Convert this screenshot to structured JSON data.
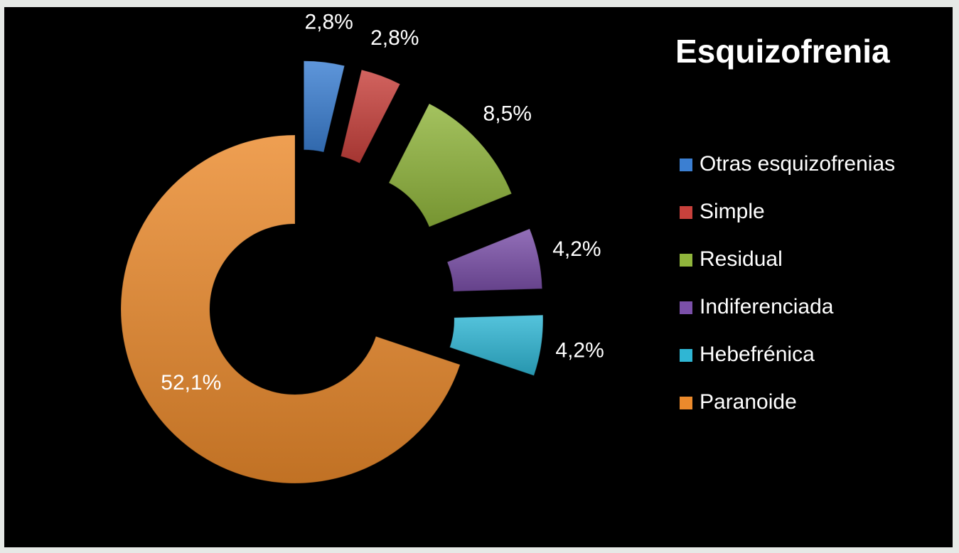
{
  "chart_data": {
    "type": "donut",
    "title": "Esquizofrenia",
    "categories": [
      "Otras esquizofrenias",
      "Simple",
      "Residual",
      "Indiferenciada",
      "Hebefrénica",
      "Paranoide"
    ],
    "values": [
      2.8,
      2.8,
      8.5,
      4.2,
      4.2,
      52.1
    ],
    "value_labels": [
      "2,8%",
      "2,8%",
      "8,5%",
      "4,2%",
      "4,2%",
      "52,1%"
    ],
    "colors": [
      "#3b7fd2",
      "#c8413c",
      "#90b53c",
      "#7b50a9",
      "#2fb6d4",
      "#eb8a2c"
    ],
    "legend": "right"
  }
}
